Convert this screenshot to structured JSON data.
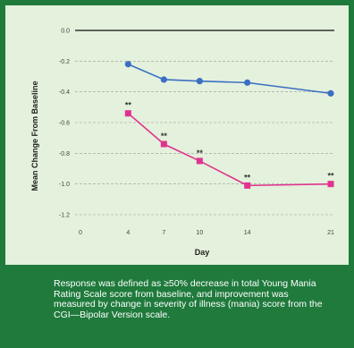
{
  "chart_data": {
    "type": "line",
    "xlabel": "Day",
    "ylabel": "Mean Change From Baseline",
    "x": [
      0,
      4,
      7,
      10,
      14,
      21
    ],
    "xticks": [
      "0",
      "4",
      "7",
      "10",
      "14",
      "21"
    ],
    "yticks": [
      "0.0",
      "-0.2",
      "-0.4",
      "-0.6",
      "-0.8",
      "-1.0",
      "-1.2"
    ],
    "ylim": [
      -1.2,
      0.0
    ],
    "grid": "horizontal",
    "series": [
      {
        "color": "#3a6fc4",
        "marker": "circle",
        "x": [
          4,
          7,
          10,
          14,
          21
        ],
        "y": [
          -0.22,
          -0.32,
          -0.33,
          -0.34,
          -0.41
        ]
      },
      {
        "color": "#e0338f",
        "marker": "square",
        "x": [
          4,
          7,
          10,
          14,
          21
        ],
        "y": [
          -0.54,
          -0.74,
          -0.85,
          -1.01,
          -1.0
        ],
        "annotations": [
          "**",
          "**",
          "**",
          "**",
          "**"
        ]
      }
    ]
  },
  "caption": "Response was defined as ≥50% decrease in total Young Mania Rating Scale score from baseline, and improvement was measured by change in severity of illness (mania) score from the CGI—Bipolar Version scale."
}
